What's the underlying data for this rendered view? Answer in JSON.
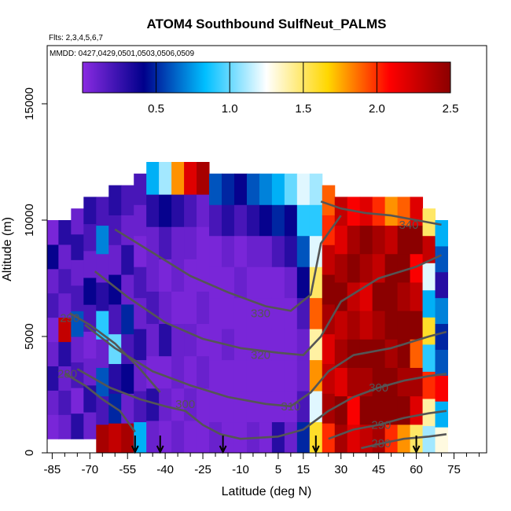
{
  "chart_data": {
    "type": "heatmap",
    "title": "ATOM4 Southbound SulfNeut_PALMS",
    "subtitle": "Flts: 2,3,4,5,6,7",
    "annotation": "MMDD: 0427,0429,0501,0503,0506,0509",
    "xlabel": "Latitude (deg N)",
    "ylabel": "Altitude (m)",
    "xlim": [
      -87,
      88
    ],
    "ylim": [
      0,
      17500
    ],
    "x_ticks": [
      "-85",
      "-70",
      "-55",
      "-40",
      "-25",
      "-10",
      "5",
      "15",
      "30",
      "45",
      "60",
      "75"
    ],
    "y_ticks": [
      "0",
      "5000",
      "10000",
      "15000"
    ],
    "colorbar": {
      "range": [
        0,
        2.5
      ],
      "ticks": [
        "0.5",
        "1.0",
        "1.5",
        "2.0",
        "2.5"
      ],
      "colors": [
        "#8a2be2",
        "#00008b",
        "#00bfff",
        "#ffffff",
        "#ffd700",
        "#ff0000",
        "#8b0000"
      ]
    },
    "contour_labels": [
      {
        "text": "340",
        "lat": 57,
        "alt": 9800
      },
      {
        "text": "330",
        "lat": -2,
        "alt": 6000
      },
      {
        "text": "320",
        "lat": -2,
        "alt": 4200
      },
      {
        "text": "310",
        "lat": 10,
        "alt": 2000
      },
      {
        "text": "300",
        "lat": -32,
        "alt": 2100
      },
      {
        "text": "300",
        "lat": 45,
        "alt": 2800
      },
      {
        "text": "290",
        "lat": -78,
        "alt": 5800
      },
      {
        "text": "290",
        "lat": 46,
        "alt": 1200
      },
      {
        "text": "280",
        "lat": -79,
        "alt": 3400
      },
      {
        "text": "280",
        "lat": 46,
        "alt": 400
      }
    ],
    "flight_markers_lat": [
      -52,
      -42,
      -17,
      20,
      60
    ],
    "columns": [
      {
        "lat": -85,
        "alt_range": [
          600,
          10000
        ],
        "values": [
          0.05,
          0.1,
          0.3,
          0.1,
          0.05,
          0.2,
          0.1,
          0.4,
          0.05
        ]
      },
      {
        "lat": -80,
        "alt_range": [
          600,
          10000
        ],
        "values": [
          0.1,
          0.2,
          0.1,
          0.3,
          2.3,
          0.1,
          0.2,
          0.1,
          0.3
        ]
      },
      {
        "lat": -75,
        "alt_range": [
          600,
          10500
        ],
        "values": [
          0.3,
          0.05,
          0.2,
          0.1,
          0.6,
          0.2,
          0.1,
          0.3,
          0.1
        ]
      },
      {
        "lat": -70,
        "alt_range": [
          600,
          11000
        ],
        "values": [
          0.1,
          0.3,
          0.1,
          0.05,
          0.2,
          0.4,
          0.1,
          0.2,
          0.3
        ]
      },
      {
        "lat": -65,
        "alt_range": [
          0,
          11000
        ],
        "values": [
          2.4,
          0.2,
          0.6,
          0.1,
          0.9,
          0.3,
          0.1,
          0.7,
          0.2
        ]
      },
      {
        "lat": -60,
        "alt_range": [
          0,
          11500
        ],
        "values": [
          2.3,
          0.5,
          0.3,
          1.0,
          0.2,
          0.4,
          0.1,
          0.2,
          0.3
        ]
      },
      {
        "lat": -55,
        "alt_range": [
          0,
          11500
        ],
        "values": [
          2.4,
          0.1,
          0.4,
          0.2,
          0.5,
          0.1,
          0.3,
          0.1,
          0.2
        ]
      },
      {
        "lat": -50,
        "alt_range": [
          0,
          12000
        ],
        "values": [
          0.8,
          0.2,
          0.1,
          0.3,
          0.1,
          0.2,
          0.05,
          0.1,
          0.2
        ]
      },
      {
        "lat": -45,
        "alt_range": [
          0,
          12500
        ],
        "values": [
          0.1,
          0.3,
          0.05,
          0.1,
          0.2,
          0.1,
          0.1,
          0.3,
          0.8
        ]
      },
      {
        "lat": -40,
        "alt_range": [
          0,
          12500
        ],
        "values": [
          0.05,
          0.1,
          0.05,
          0.3,
          0.1,
          0.05,
          0.2,
          0.4,
          1.1
        ]
      },
      {
        "lat": -35,
        "alt_range": [
          0,
          12500
        ],
        "values": [
          0.1,
          0.05,
          0.1,
          0.1,
          0.05,
          0.1,
          0.1,
          0.3,
          1.8
        ]
      },
      {
        "lat": -30,
        "alt_range": [
          0,
          12500
        ],
        "values": [
          0.05,
          0.1,
          0.05,
          0.1,
          0.05,
          0.05,
          0.1,
          0.2,
          2.2
        ]
      },
      {
        "lat": -25,
        "alt_range": [
          0,
          12500
        ],
        "values": [
          0.05,
          0.05,
          0.1,
          0.05,
          0.1,
          0.05,
          0.05,
          0.1,
          2.4
        ]
      },
      {
        "lat": -20,
        "alt_range": [
          0,
          12000
        ],
        "values": [
          0.1,
          0.05,
          0.05,
          0.05,
          0.05,
          0.05,
          0.05,
          0.2,
          0.6
        ]
      },
      {
        "lat": -15,
        "alt_range": [
          0,
          12000
        ],
        "values": [
          0.05,
          0.05,
          0.05,
          0.1,
          0.05,
          0.05,
          0.1,
          0.3,
          0.5
        ]
      },
      {
        "lat": -10,
        "alt_range": [
          0,
          12000
        ],
        "values": [
          0.05,
          0.05,
          0.05,
          0.05,
          0.05,
          0.1,
          0.05,
          0.2,
          0.4
        ]
      },
      {
        "lat": -5,
        "alt_range": [
          0,
          12000
        ],
        "values": [
          0.1,
          0.05,
          0.05,
          0.05,
          0.05,
          0.05,
          0.1,
          0.3,
          0.6
        ]
      },
      {
        "lat": 0,
        "alt_range": [
          0,
          12000
        ],
        "values": [
          0.05,
          0.05,
          0.05,
          0.05,
          0.05,
          0.05,
          0.1,
          0.4,
          0.7
        ]
      },
      {
        "lat": 5,
        "alt_range": [
          0,
          12000
        ],
        "values": [
          0.3,
          0.05,
          0.05,
          0.05,
          0.05,
          0.05,
          0.2,
          0.5,
          0.8
        ]
      },
      {
        "lat": 10,
        "alt_range": [
          0,
          12000
        ],
        "values": [
          0.1,
          0.05,
          0.05,
          0.05,
          0.05,
          0.1,
          0.3,
          0.4,
          1.0
        ]
      },
      {
        "lat": 15,
        "alt_range": [
          0,
          12000
        ],
        "values": [
          0.5,
          0.2,
          0.1,
          0.1,
          0.2,
          0.4,
          0.6,
          0.9,
          1.2
        ]
      },
      {
        "lat": 20,
        "alt_range": [
          0,
          12000
        ],
        "values": [
          1.6,
          1.2,
          1.8,
          1.4,
          1.9,
          1.5,
          1.2,
          0.9,
          1.1
        ]
      },
      {
        "lat": 25,
        "alt_range": [
          0,
          11500
        ],
        "values": [
          2.0,
          2.4,
          2.3,
          2.2,
          2.4,
          2.5,
          2.3,
          2.0,
          1.9
        ]
      },
      {
        "lat": 30,
        "alt_range": [
          0,
          11000
        ],
        "values": [
          2.4,
          2.5,
          2.2,
          2.4,
          2.3,
          2.5,
          2.4,
          2.2,
          2.3
        ]
      },
      {
        "lat": 35,
        "alt_range": [
          0,
          11000
        ],
        "values": [
          2.2,
          2.1,
          2.4,
          2.5,
          2.4,
          2.3,
          2.5,
          2.4,
          2.1
        ]
      },
      {
        "lat": 40,
        "alt_range": [
          0,
          11000
        ],
        "values": [
          2.3,
          2.5,
          2.4,
          2.5,
          2.3,
          2.2,
          2.4,
          2.5,
          2.2
        ]
      },
      {
        "lat": 45,
        "alt_range": [
          0,
          11000
        ],
        "values": [
          2.4,
          2.5,
          2.5,
          2.5,
          2.4,
          2.5,
          2.3,
          2.4,
          2.0
        ]
      },
      {
        "lat": 50,
        "alt_range": [
          0,
          11000
        ],
        "values": [
          2.0,
          2.5,
          2.5,
          2.4,
          2.5,
          2.5,
          2.5,
          2.3,
          1.8
        ]
      },
      {
        "lat": 55,
        "alt_range": [
          0,
          11000
        ],
        "values": [
          1.8,
          2.5,
          2.4,
          2.5,
          2.5,
          2.4,
          2.5,
          2.5,
          1.9
        ]
      },
      {
        "lat": 60,
        "alt_range": [
          0,
          11000
        ],
        "values": [
          1.5,
          2.2,
          2.4,
          1.9,
          2.5,
          2.3,
          2.1,
          2.5,
          2.2
        ]
      },
      {
        "lat": 65,
        "alt_range": [
          0,
          10500
        ],
        "values": [
          1.1,
          1.4,
          2.0,
          0.9,
          1.6,
          0.8,
          1.2,
          2.3,
          1.5
        ]
      },
      {
        "lat": 70,
        "alt_range": [
          0,
          10000
        ],
        "values": [
          1.3,
          0.8,
          2.1,
          0.6,
          0.5,
          0.7,
          0.3,
          0.6,
          0.8
        ]
      }
    ],
    "contour_lines": [
      {
        "label": "340",
        "points": [
          [
            22,
            10800
          ],
          [
            30,
            10500
          ],
          [
            40,
            10300
          ],
          [
            50,
            10200
          ],
          [
            60,
            10000
          ],
          [
            70,
            9800
          ]
        ]
      },
      {
        "label": "330",
        "points": [
          [
            -60,
            9600
          ],
          [
            -45,
            8600
          ],
          [
            -30,
            7600
          ],
          [
            -15,
            6900
          ],
          [
            0,
            6300
          ],
          [
            10,
            6100
          ],
          [
            18,
            6800
          ],
          [
            22,
            9000
          ],
          [
            30,
            10200
          ]
        ]
      },
      {
        "label": "320",
        "points": [
          [
            -68,
            7800
          ],
          [
            -55,
            6700
          ],
          [
            -40,
            5600
          ],
          [
            -25,
            4900
          ],
          [
            -10,
            4500
          ],
          [
            5,
            4300
          ],
          [
            15,
            4200
          ],
          [
            22,
            5000
          ],
          [
            30,
            6500
          ],
          [
            45,
            7500
          ],
          [
            60,
            8000
          ],
          [
            70,
            8500
          ]
        ]
      },
      {
        "label": "310",
        "points": [
          [
            -72,
            5500
          ],
          [
            -60,
            4500
          ],
          [
            -45,
            3500
          ],
          [
            -30,
            2900
          ],
          [
            -15,
            2400
          ],
          [
            0,
            2100
          ],
          [
            10,
            2000
          ],
          [
            18,
            2600
          ],
          [
            25,
            3500
          ],
          [
            35,
            4200
          ],
          [
            50,
            4500
          ],
          [
            65,
            5000
          ],
          [
            72,
            5200
          ]
        ]
      },
      {
        "label": "300",
        "points": [
          [
            -75,
            3600
          ],
          [
            -62,
            2800
          ],
          [
            -50,
            2300
          ],
          [
            -40,
            2000
          ],
          [
            -32,
            1800
          ],
          [
            -25,
            1200
          ],
          [
            -18,
            800
          ],
          [
            -10,
            600
          ],
          [
            5,
            700
          ],
          [
            15,
            1000
          ],
          [
            25,
            1800
          ],
          [
            35,
            2400
          ],
          [
            45,
            2800
          ],
          [
            55,
            3100
          ],
          [
            65,
            3300
          ],
          [
            72,
            3400
          ]
        ]
      },
      {
        "label": "290",
        "points": [
          [
            -78,
            6000
          ],
          [
            -70,
            5500
          ],
          [
            -60,
            4700
          ],
          [
            -50,
            3600
          ],
          [
            -42,
            2600
          ]
        ]
      },
      {
        "label": "290",
        "points": [
          [
            25,
            600
          ],
          [
            35,
            1000
          ],
          [
            45,
            1200
          ],
          [
            55,
            1500
          ],
          [
            65,
            1700
          ],
          [
            72,
            1800
          ]
        ]
      },
      {
        "label": "280",
        "points": [
          [
            -80,
            3400
          ],
          [
            -72,
            2900
          ],
          [
            -65,
            2300
          ],
          [
            -58,
            1800
          ],
          [
            -52,
            900
          ]
        ]
      },
      {
        "label": "280",
        "points": [
          [
            38,
            200
          ],
          [
            46,
            400
          ],
          [
            55,
            600
          ],
          [
            65,
            700
          ],
          [
            72,
            800
          ]
        ]
      }
    ]
  }
}
